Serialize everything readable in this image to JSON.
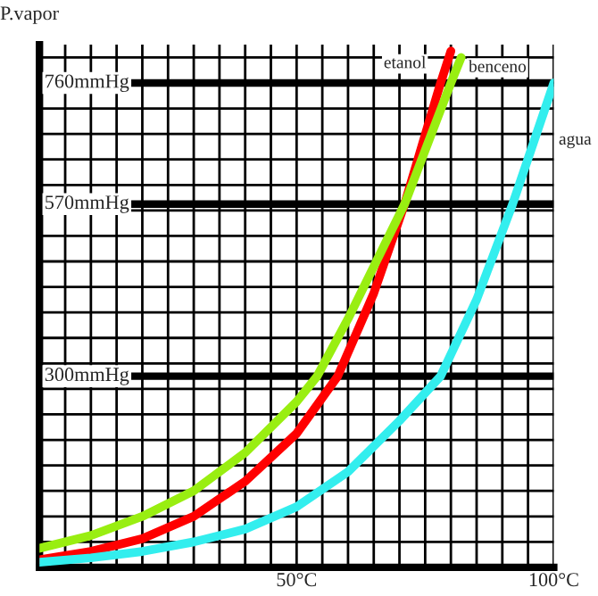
{
  "chart_data": {
    "type": "line",
    "ylabel": "P.vapor",
    "xlim": [
      0,
      100
    ],
    "ylim": [
      0,
      820
    ],
    "xticks": [
      {
        "value": 0,
        "label": null
      },
      {
        "value": 5,
        "label": null
      },
      {
        "value": 10,
        "label": null
      },
      {
        "value": 15,
        "label": null
      },
      {
        "value": 20,
        "label": null
      },
      {
        "value": 25,
        "label": null
      },
      {
        "value": 30,
        "label": null
      },
      {
        "value": 35,
        "label": null
      },
      {
        "value": 40,
        "label": null
      },
      {
        "value": 45,
        "label": null
      },
      {
        "value": 50,
        "label": "50°C"
      },
      {
        "value": 55,
        "label": null
      },
      {
        "value": 60,
        "label": null
      },
      {
        "value": 65,
        "label": null
      },
      {
        "value": 70,
        "label": null
      },
      {
        "value": 75,
        "label": null
      },
      {
        "value": 80,
        "label": null
      },
      {
        "value": 85,
        "label": null
      },
      {
        "value": 90,
        "label": null
      },
      {
        "value": 95,
        "label": null
      },
      {
        "value": 100,
        "label": "100°C"
      }
    ],
    "yticks": [
      {
        "value": 0,
        "label": null
      },
      {
        "value": 40,
        "label": null
      },
      {
        "value": 80,
        "label": null
      },
      {
        "value": 120,
        "label": null
      },
      {
        "value": 160,
        "label": null
      },
      {
        "value": 200,
        "label": null
      },
      {
        "value": 240,
        "label": null
      },
      {
        "value": 280,
        "label": null
      },
      {
        "value": 320,
        "label": null
      },
      {
        "value": 360,
        "label": null
      },
      {
        "value": 400,
        "label": null
      },
      {
        "value": 440,
        "label": null
      },
      {
        "value": 480,
        "label": null
      },
      {
        "value": 520,
        "label": null
      },
      {
        "value": 560,
        "label": null
      },
      {
        "value": 600,
        "label": null
      },
      {
        "value": 640,
        "label": null
      },
      {
        "value": 680,
        "label": null
      },
      {
        "value": 720,
        "label": null
      },
      {
        "value": 760,
        "label": null
      },
      {
        "value": 800,
        "label": null
      }
    ],
    "grid": true,
    "legend": false,
    "marker": "none",
    "line_style": "solid",
    "tick_labels": "x",
    "ref_lines": [
      {
        "axis": "y",
        "value": 760,
        "label": "760mmHg",
        "color": "#000000"
      },
      {
        "axis": "y",
        "value": 570,
        "label": "570mmHg",
        "color": "#000000"
      },
      {
        "axis": "y",
        "value": 300,
        "label": "300mmHg",
        "color": "#000000"
      }
    ],
    "series": [
      {
        "name": "etanol",
        "color": "#ff0000",
        "x": [
          0,
          10,
          20,
          30,
          40,
          50,
          58,
          65,
          71,
          78,
          80
        ],
        "values": [
          12,
          25,
          45,
          80,
          135,
          210,
          300,
          430,
          570,
          760,
          810
        ]
      },
      {
        "name": "benceno",
        "color": "#99ee11",
        "x": [
          0,
          10,
          20,
          30,
          40,
          50,
          54,
          60,
          71,
          80,
          82
        ],
        "values": [
          30,
          50,
          80,
          120,
          180,
          260,
          300,
          390,
          570,
          760,
          800
        ]
      },
      {
        "name": "agua",
        "color": "#33eeee",
        "x": [
          0,
          10,
          20,
          30,
          40,
          50,
          60,
          70,
          78,
          85,
          92,
          100
        ],
        "values": [
          8,
          15,
          25,
          40,
          60,
          95,
          150,
          230,
          300,
          420,
          570,
          760
        ]
      }
    ]
  }
}
